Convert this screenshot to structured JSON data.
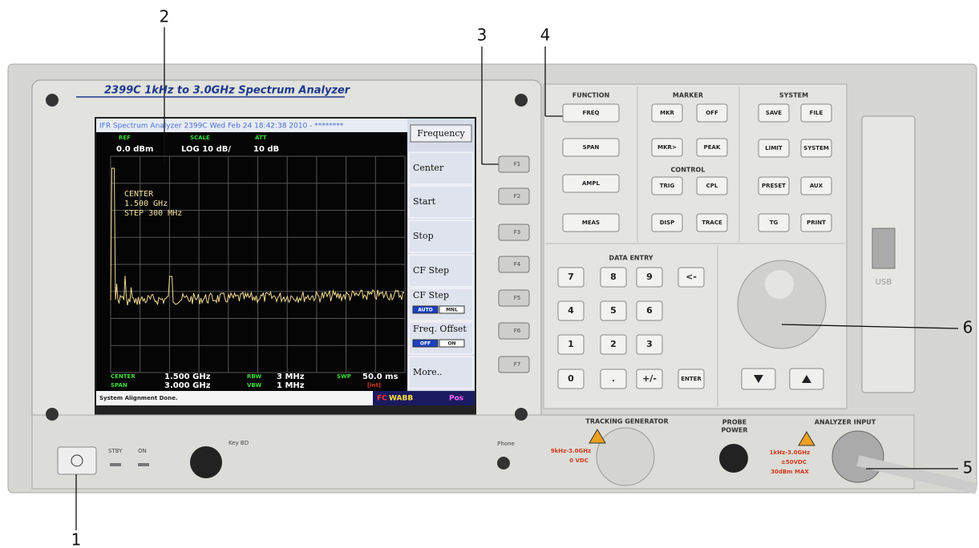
{
  "callouts": [
    "1",
    "2",
    "3",
    "4",
    "5",
    "6"
  ],
  "brand": "2399C 1kHz to 3.0GHz Spectrum Analyzer",
  "screen": {
    "title": "IFR Spectrum Analyzer 2399C Wed Feb 24 18:42:38 2010 - ********",
    "ref_label": "REF",
    "ref": "0.0 dBm",
    "scale_label": "SCALE",
    "scale": "LOG 10 dB/",
    "att_label": "ATT",
    "att": "10 dB",
    "marker_lines": [
      "CENTER",
      "1.500 GHz",
      "STEP 300 MHz"
    ],
    "center_label": "CENTER",
    "center": "1.500 GHz",
    "span_label": "SPAN",
    "span": "3.000 GHz",
    "rbw_label": "RBW",
    "rbw": "3 MHz",
    "vbw_label": "VBW",
    "vbw": "1 MHz",
    "swp_label": "SWP",
    "swp": "50.0 ms",
    "int": "[int]",
    "status": "System Alignment Done.",
    "fc": "FC",
    "wabb": "WABB",
    "pos": "Pos"
  },
  "softkeys": {
    "title": "Frequency",
    "items": [
      {
        "label": "Center"
      },
      {
        "label": "Start"
      },
      {
        "label": "Stop"
      },
      {
        "label": "CF Step"
      },
      {
        "label": "CF Step",
        "options": [
          "AUTO",
          "MNL"
        ]
      },
      {
        "label": "Freq. Offset",
        "options": [
          "OFF",
          "ON"
        ]
      },
      {
        "label": "More.."
      }
    ]
  },
  "fkeys": [
    "F1",
    "F2",
    "F3",
    "F4",
    "F5",
    "F6",
    "F7"
  ],
  "function": {
    "title": "FUNCTION",
    "keys": [
      "FREQ",
      "SPAN",
      "AMPL",
      "MEAS"
    ]
  },
  "marker": {
    "title": "MARKER",
    "keys": [
      "MKR",
      "OFF",
      "MKR>",
      "PEAK"
    ]
  },
  "control": {
    "title": "CONTROL",
    "keys": [
      "TRIG",
      "CPL",
      "DISP",
      "TRACE"
    ]
  },
  "system": {
    "title": "SYSTEM",
    "keys": [
      "SAVE",
      "FILE",
      "LIMIT",
      "SYSTEM",
      "PRESET",
      "AUX",
      "TG",
      "PRINT"
    ]
  },
  "data_entry": {
    "title": "DATA ENTRY",
    "keys": [
      "7",
      "8",
      "9",
      "<-",
      "4",
      "5",
      "6",
      "1",
      "2",
      "3",
      "0",
      ".",
      "+/-",
      "ENTER"
    ]
  },
  "bottom": {
    "stby": "STBY",
    "on": "ON",
    "key_bd": "Key BD",
    "phone": "Phone",
    "tracking_generator": "TRACKING GENERATOR",
    "tg_range": "9kHz-3.0GHz",
    "tg_vdc": "0 VDC",
    "probe": "PROBE",
    "power": "POWER",
    "analyzer_input": "ANALYZER INPUT",
    "in_range": "1kHz-3.0GHz",
    "in_vdc": "±50VDC",
    "in_max": "30dBm MAX",
    "usb": "USB"
  }
}
